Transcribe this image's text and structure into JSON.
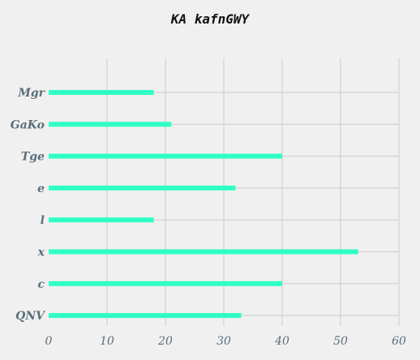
{
  "chart_data": {
    "type": "bar",
    "orientation": "horizontal",
    "title": "KA kafnGWY",
    "xlabel": "",
    "ylabel": "",
    "categories": [
      "Mgr",
      "GaKo",
      "Tge",
      "e",
      "l",
      "x",
      "c",
      "QNV"
    ],
    "values": [
      18,
      21,
      40,
      32,
      18,
      53,
      40,
      33
    ],
    "xlim": [
      0,
      60
    ],
    "xticks": [
      0,
      10,
      20,
      30,
      40,
      50,
      60
    ],
    "grid": true,
    "bar_color": "#2effc4",
    "grid_color": "#cbcbcb",
    "tick_label_color": "#5a6e7a",
    "background": "#f0f0f0"
  }
}
